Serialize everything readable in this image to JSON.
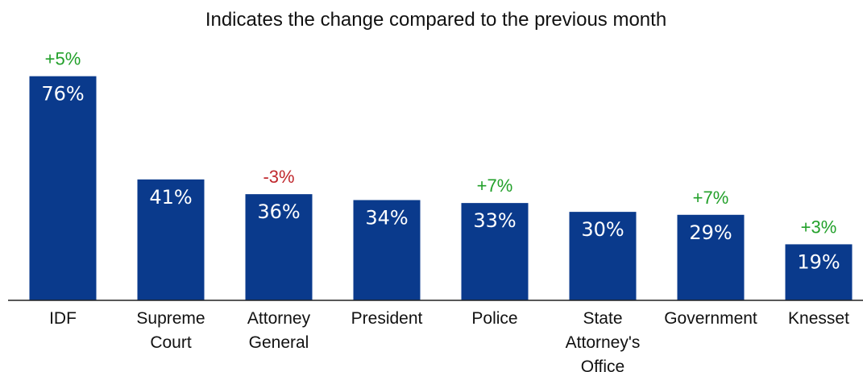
{
  "chart_data": {
    "type": "bar",
    "title": "Indicates the change compared to the previous month",
    "categories": [
      [
        "IDF"
      ],
      [
        "Supreme",
        "Court"
      ],
      [
        "Attorney",
        "General"
      ],
      [
        "President"
      ],
      [
        "Police"
      ],
      [
        "State",
        "Attorney's",
        "Office"
      ],
      [
        "Government"
      ],
      [
        "Knesset"
      ]
    ],
    "values": [
      76,
      41,
      36,
      34,
      33,
      30,
      29,
      19
    ],
    "value_labels": [
      "76%",
      "41%",
      "36%",
      "34%",
      "33%",
      "30%",
      "29%",
      "19%"
    ],
    "changes": [
      "+5%",
      "",
      "-3%",
      "",
      "+7%",
      "",
      "+7%",
      "+3%"
    ],
    "ylim": [
      0,
      80
    ],
    "grid": false,
    "colors": {
      "bar": "#0a3a8c",
      "positive": "#22a02a",
      "negative": "#c0282d",
      "axis": "#222222"
    }
  }
}
